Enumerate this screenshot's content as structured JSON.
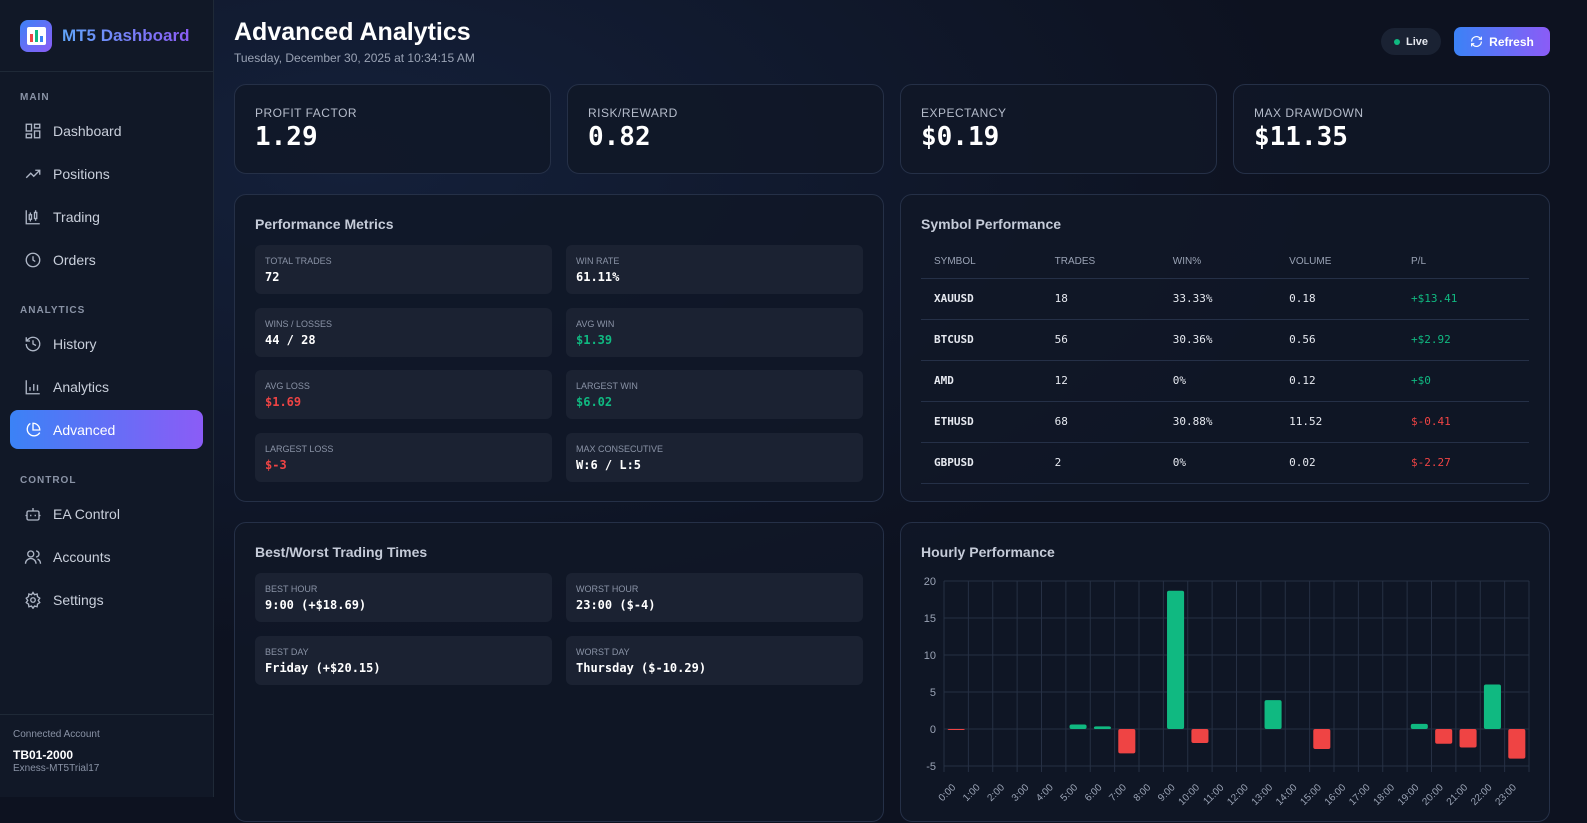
{
  "brand": {
    "name": "MT5 Dashboard"
  },
  "sidebar": {
    "sections": [
      {
        "label": "MAIN",
        "items": [
          {
            "label": "Dashboard",
            "icon": "dashboard-icon"
          },
          {
            "label": "Positions",
            "icon": "trending-up-icon"
          },
          {
            "label": "Trading",
            "icon": "candlestick-icon"
          },
          {
            "label": "Orders",
            "icon": "clock-icon"
          }
        ]
      },
      {
        "label": "ANALYTICS",
        "items": [
          {
            "label": "History",
            "icon": "history-icon"
          },
          {
            "label": "Analytics",
            "icon": "bar-chart-icon"
          },
          {
            "label": "Advanced",
            "icon": "pie-chart-icon",
            "active": true
          }
        ]
      },
      {
        "label": "CONTROL",
        "items": [
          {
            "label": "EA Control",
            "icon": "bot-icon"
          },
          {
            "label": "Accounts",
            "icon": "users-icon"
          },
          {
            "label": "Settings",
            "icon": "gear-icon"
          }
        ]
      }
    ],
    "account": {
      "label": "Connected Account",
      "name": "TB01-2000",
      "server": "Exness-MT5Trial17"
    }
  },
  "header": {
    "title": "Advanced Analytics",
    "date": "Tuesday, December 30, 2025 at 10:34:15 AM",
    "live": "Live",
    "refresh": "Refresh"
  },
  "kpis": [
    {
      "label": "PROFIT FACTOR",
      "value": "1.29"
    },
    {
      "label": "RISK/REWARD",
      "value": "0.82"
    },
    {
      "label": "EXPECTANCY",
      "value": "$0.19"
    },
    {
      "label": "MAX DRAWDOWN",
      "value": "$11.35"
    }
  ],
  "performance": {
    "title": "Performance Metrics",
    "tiles": [
      {
        "label": "TOTAL TRADES",
        "value": "72",
        "tone": ""
      },
      {
        "label": "WIN RATE",
        "value": "61.11%",
        "tone": ""
      },
      {
        "label": "WINS / LOSSES",
        "value": "44 / 28",
        "tone": ""
      },
      {
        "label": "AVG WIN",
        "value": "$1.39",
        "tone": "g"
      },
      {
        "label": "AVG LOSS",
        "value": "$1.69",
        "tone": "r"
      },
      {
        "label": "LARGEST WIN",
        "value": "$6.02",
        "tone": "g"
      },
      {
        "label": "LARGEST LOSS",
        "value": "$-3",
        "tone": "r"
      },
      {
        "label": "MAX CONSECUTIVE",
        "value": "W:6 / L:5",
        "tone": ""
      }
    ]
  },
  "symbols": {
    "title": "Symbol Performance",
    "columns": [
      "SYMBOL",
      "TRADES",
      "WIN%",
      "VOLUME",
      "P/L"
    ],
    "rows": [
      [
        "XAUUSD",
        "18",
        "33.33%",
        "0.18",
        "+$13.41"
      ],
      [
        "BTCUSD",
        "56",
        "30.36%",
        "0.56",
        "+$2.92"
      ],
      [
        "AMD",
        "12",
        "0%",
        "0.12",
        "+$0"
      ],
      [
        "ETHUSD",
        "68",
        "30.88%",
        "11.52",
        "$-0.41"
      ],
      [
        "GBPUSD",
        "2",
        "0%",
        "0.02",
        "$-2.27"
      ]
    ]
  },
  "times": {
    "title": "Best/Worst Trading Times",
    "tiles": [
      {
        "label": "BEST HOUR",
        "value": "9:00 (+$18.69)"
      },
      {
        "label": "WORST HOUR",
        "value": "23:00 ($-4)"
      },
      {
        "label": "BEST DAY",
        "value": "Friday (+$20.15)"
      },
      {
        "label": "WORST DAY",
        "value": "Thursday ($-10.29)"
      }
    ]
  },
  "colors": {
    "positive": "#10b981",
    "negative": "#ef4444",
    "accent": "#3b82f6",
    "accent2": "#8b5cf6"
  },
  "chart_data": {
    "type": "bar",
    "title": "Hourly Performance",
    "categories": [
      "0:00",
      "1:00",
      "2:00",
      "3:00",
      "4:00",
      "5:00",
      "6:00",
      "7:00",
      "8:00",
      "9:00",
      "10:00",
      "11:00",
      "12:00",
      "13:00",
      "14:00",
      "15:00",
      "16:00",
      "17:00",
      "18:00",
      "19:00",
      "20:00",
      "21:00",
      "22:00",
      "23:00"
    ],
    "values": [
      -0.05,
      0,
      0,
      0,
      0,
      0.6,
      0.35,
      -3.3,
      0,
      18.69,
      -1.9,
      0,
      0,
      3.9,
      0,
      -2.7,
      0,
      0,
      0,
      0.7,
      -2.0,
      -2.5,
      6.02,
      -4
    ],
    "ylim": [
      -5,
      20
    ],
    "yticks": [
      -5,
      0,
      5,
      10,
      15,
      20
    ],
    "grid": true
  }
}
